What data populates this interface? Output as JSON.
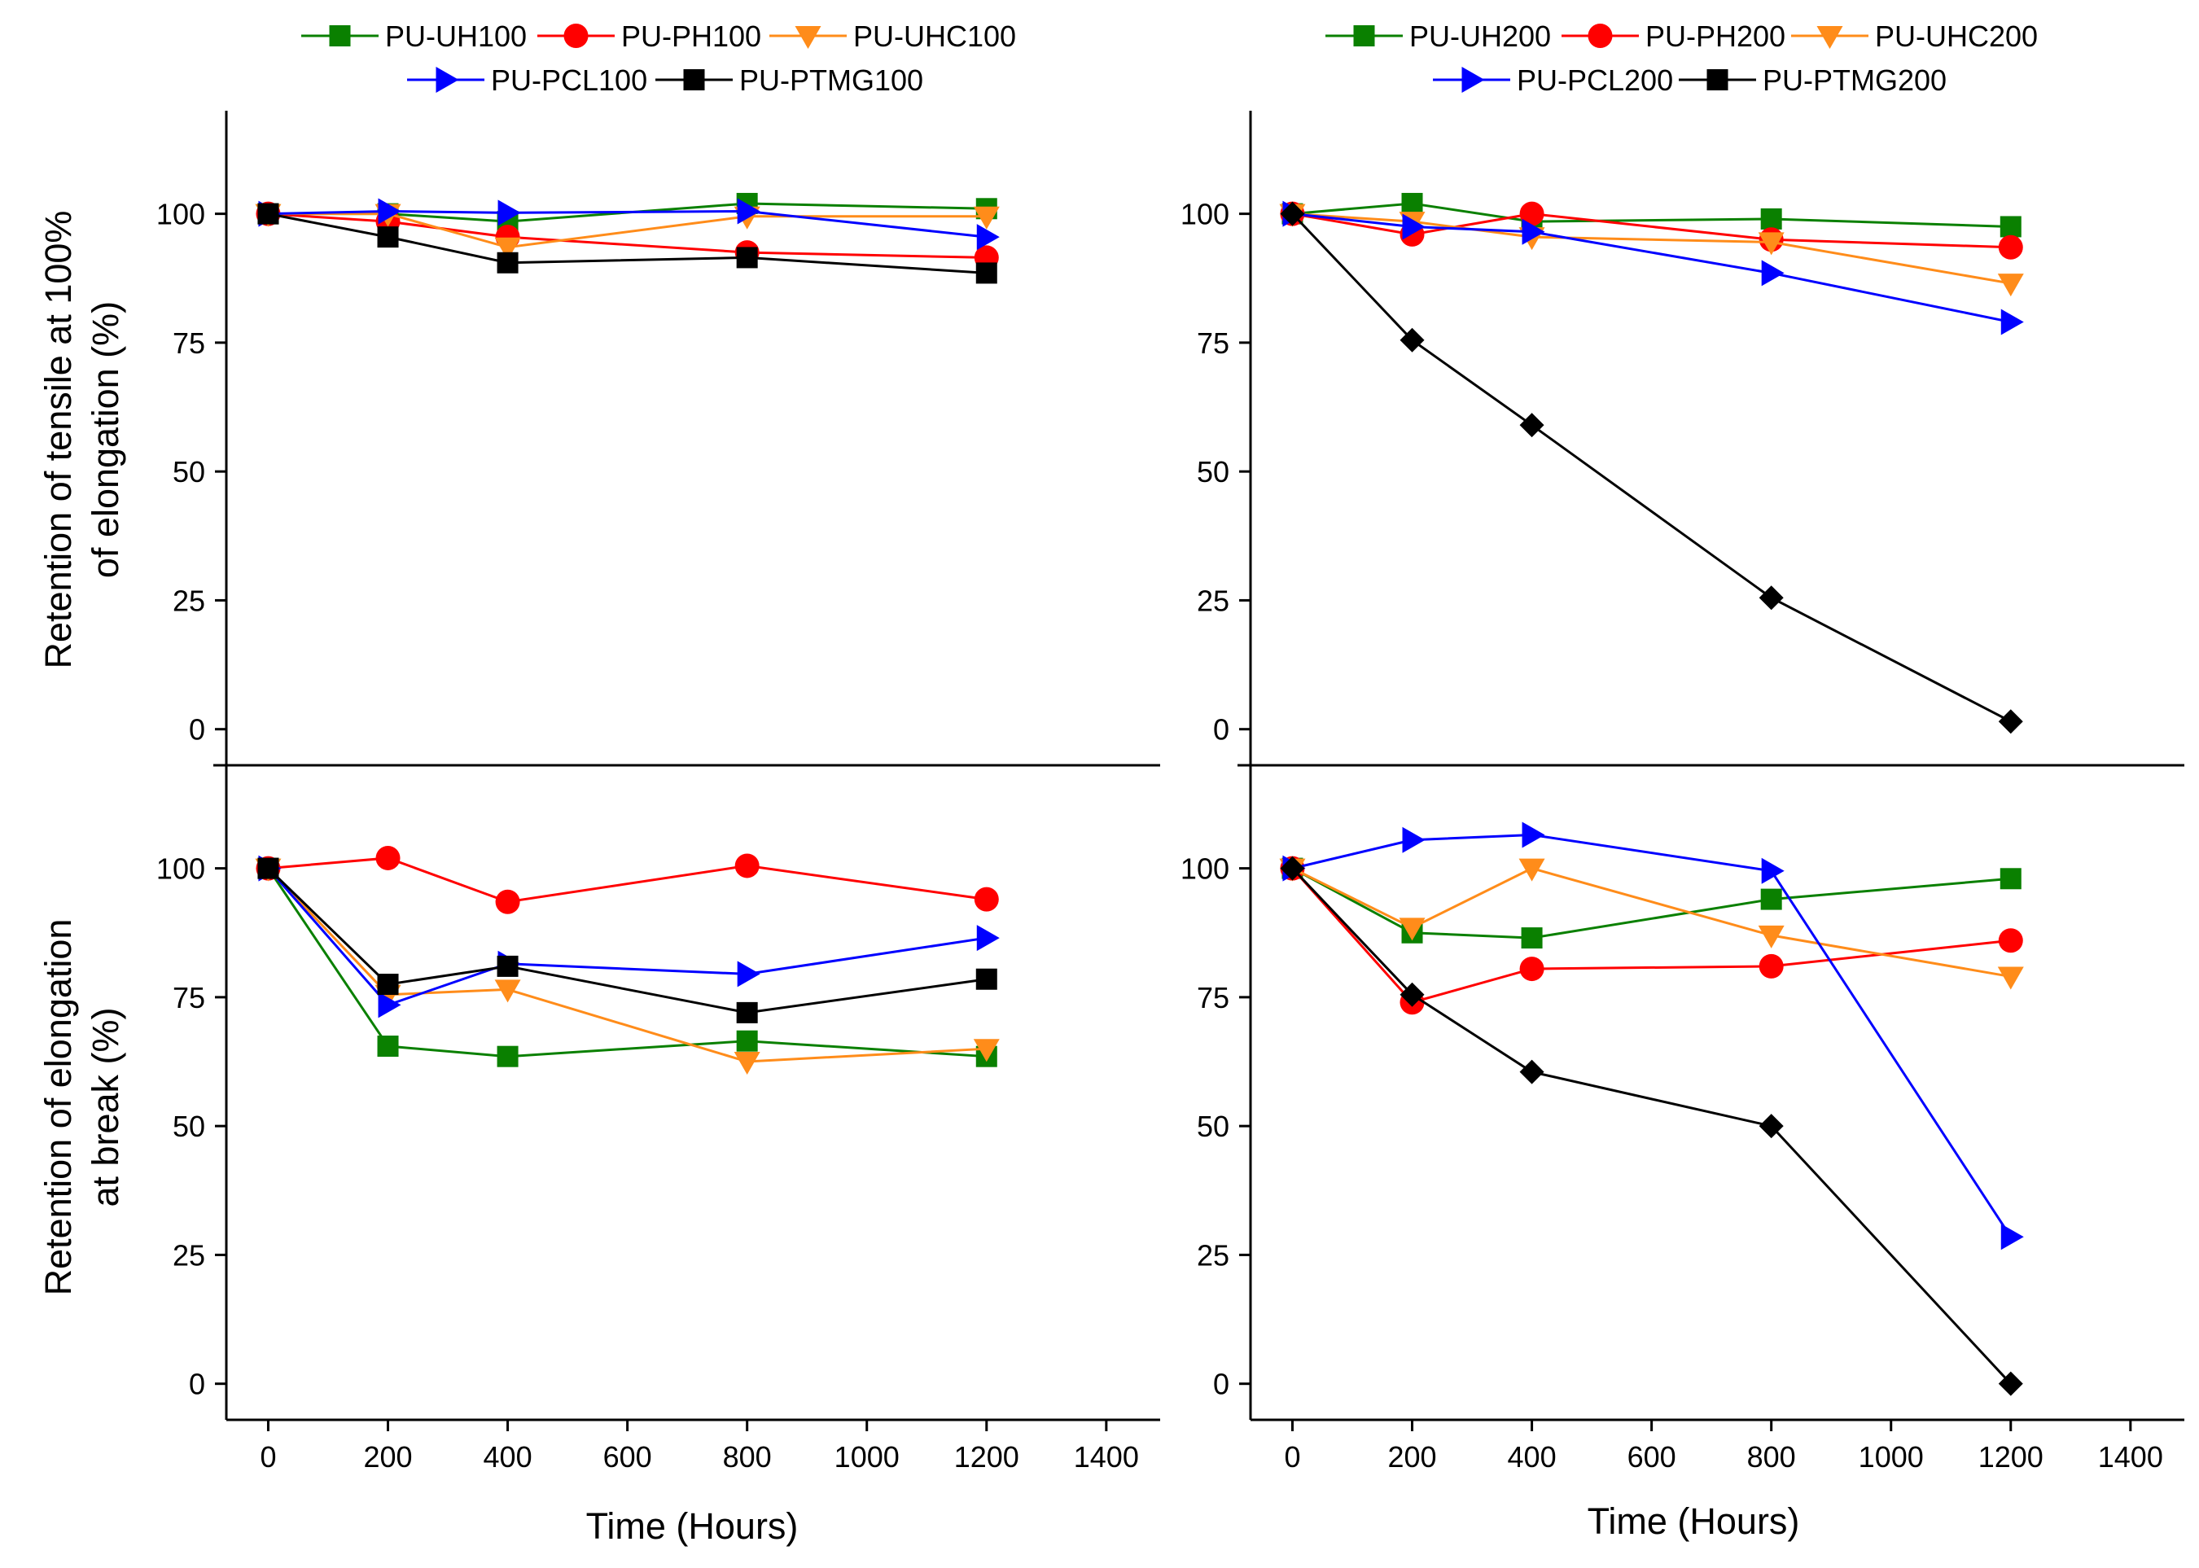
{
  "colors": {
    "PU-UH": "#0a8000",
    "PU-PH": "#ff0000",
    "PU-UHC": "#ff8c1a",
    "PU-PCL": "#0000ff",
    "PU-PTMG": "#000000"
  },
  "legends": {
    "left": [
      "PU-UH100",
      "PU-PH100",
      "PU-UHC100",
      "PU-PCL100",
      "PU-PTMG100"
    ],
    "right": [
      "PU-UH200",
      "PU-PH200",
      "PU-UHC200",
      "PU-PCL200",
      "PU-PTMG200"
    ]
  },
  "axes": {
    "xlabel": "Time (Hours)",
    "ylabel_top": [
      "Retention of tensile at 100%",
      "of elongation (%)"
    ],
    "ylabel_bottom": [
      "Retention of elongation",
      "at break (%)"
    ],
    "xticks": [
      0,
      200,
      400,
      600,
      800,
      1000,
      1200,
      1400
    ],
    "yticks": [
      0,
      25,
      50,
      75,
      100
    ],
    "xlim": [
      -70,
      1490
    ],
    "ylim": [
      -7,
      120
    ]
  },
  "chart_data": [
    {
      "type": "line",
      "id": "tensile-100",
      "ylabel": "Retention of tensile at 100% of elongation (%)",
      "xlabel": "",
      "x": [
        0,
        200,
        400,
        800,
        1200
      ],
      "series": [
        {
          "name": "PU-UH100",
          "group": "PU-UH",
          "marker": "square",
          "values": [
            100,
            100,
            98.5,
            102,
            101
          ]
        },
        {
          "name": "PU-PH100",
          "group": "PU-PH",
          "marker": "circle",
          "values": [
            100,
            98.5,
            95.5,
            92.5,
            91.5
          ]
        },
        {
          "name": "PU-UHC100",
          "group": "PU-UHC",
          "marker": "triangle-down",
          "values": [
            100,
            100,
            93.5,
            99.5,
            99.5
          ]
        },
        {
          "name": "PU-PCL100",
          "group": "PU-PCL",
          "marker": "triangle-right",
          "values": [
            100,
            100.5,
            100.2,
            100.5,
            95.5
          ]
        },
        {
          "name": "PU-PTMG100",
          "group": "PU-PTMG",
          "marker": "square",
          "values": [
            100,
            95.5,
            90.5,
            91.5,
            88.5
          ]
        }
      ]
    },
    {
      "type": "line",
      "id": "tensile-200",
      "ylabel": "",
      "xlabel": "",
      "x": [
        0,
        200,
        400,
        800,
        1200
      ],
      "series": [
        {
          "name": "PU-UH200",
          "group": "PU-UH",
          "marker": "square",
          "values": [
            100,
            102,
            98.5,
            99,
            97.5
          ]
        },
        {
          "name": "PU-PH200",
          "group": "PU-PH",
          "marker": "circle",
          "values": [
            100,
            96,
            100,
            95,
            93.5
          ]
        },
        {
          "name": "PU-UHC200",
          "group": "PU-UHC",
          "marker": "triangle-down",
          "values": [
            100,
            98.5,
            95.5,
            94.5,
            86.5
          ]
        },
        {
          "name": "PU-PCL200",
          "group": "PU-PCL",
          "marker": "triangle-right",
          "values": [
            100,
            97.5,
            96.5,
            88.5,
            79
          ]
        },
        {
          "name": "PU-PTMG200",
          "group": "PU-PTMG",
          "marker": "diamond",
          "values": [
            100,
            75.5,
            59,
            25.5,
            1.5
          ]
        }
      ]
    },
    {
      "type": "line",
      "id": "elongation-100",
      "ylabel": "Retention of elongation at break (%)",
      "xlabel": "Time (Hours)",
      "x": [
        0,
        200,
        400,
        800,
        1200
      ],
      "series": [
        {
          "name": "PU-UH100",
          "group": "PU-UH",
          "marker": "square",
          "values": [
            100,
            65.5,
            63.5,
            66.5,
            63.5
          ]
        },
        {
          "name": "PU-PH100",
          "group": "PU-PH",
          "marker": "circle",
          "values": [
            100,
            102,
            93.5,
            100.5,
            94
          ]
        },
        {
          "name": "PU-UHC100",
          "group": "PU-UHC",
          "marker": "triangle-down",
          "values": [
            100,
            75.5,
            76.5,
            62.5,
            65
          ]
        },
        {
          "name": "PU-PCL100",
          "group": "PU-PCL",
          "marker": "triangle-right",
          "values": [
            100,
            73.5,
            81.5,
            79.5,
            86.5
          ]
        },
        {
          "name": "PU-PTMG100",
          "group": "PU-PTMG",
          "marker": "square",
          "values": [
            100,
            77.5,
            81,
            72,
            78.5
          ]
        }
      ]
    },
    {
      "type": "line",
      "id": "elongation-200",
      "ylabel": "",
      "xlabel": "Time (Hours)",
      "x": [
        0,
        200,
        400,
        800,
        1200
      ],
      "series": [
        {
          "name": "PU-UH200",
          "group": "PU-UH",
          "marker": "square",
          "values": [
            100,
            87.5,
            86.5,
            94,
            98
          ]
        },
        {
          "name": "PU-PH200",
          "group": "PU-PH",
          "marker": "circle",
          "values": [
            100,
            74,
            80.5,
            81,
            86
          ]
        },
        {
          "name": "PU-UHC200",
          "group": "PU-UHC",
          "marker": "triangle-down",
          "values": [
            100,
            88.5,
            100,
            87,
            79
          ]
        },
        {
          "name": "PU-PCL200",
          "group": "PU-PCL",
          "marker": "triangle-right",
          "values": [
            100,
            105.5,
            106.5,
            99.5,
            28.5
          ]
        },
        {
          "name": "PU-PTMG200",
          "group": "PU-PTMG",
          "marker": "diamond",
          "values": [
            100,
            75.5,
            60.5,
            50,
            0
          ]
        }
      ]
    }
  ]
}
